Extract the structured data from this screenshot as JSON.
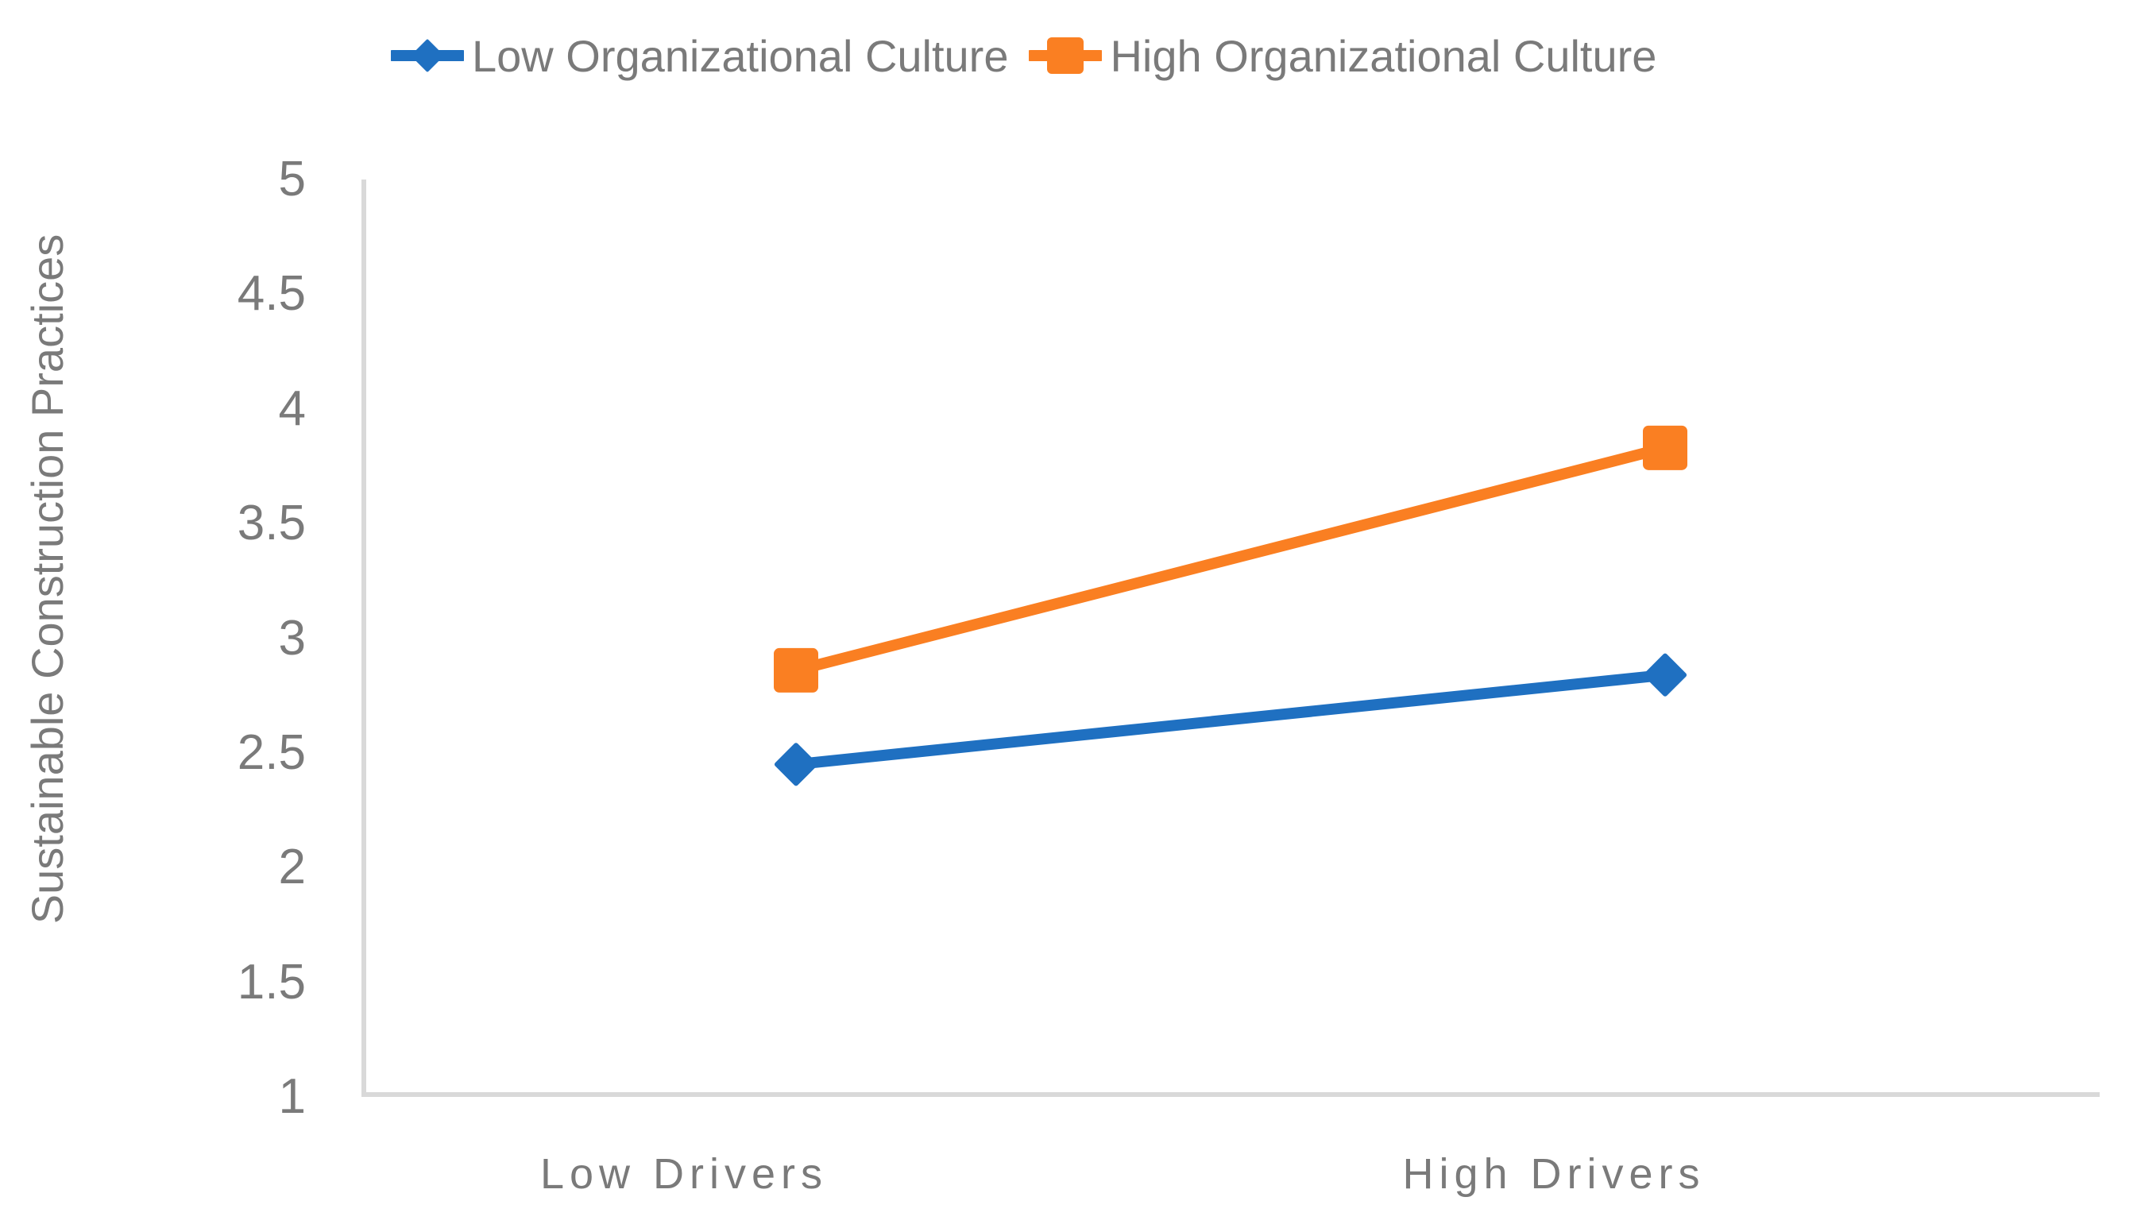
{
  "chart_data": {
    "type": "line",
    "title": "",
    "xlabel": "",
    "ylabel": "Sustainable Construction Practices",
    "categories": [
      "Low Drivers",
      "High Drivers"
    ],
    "series": [
      {
        "name": "Low Organizational Culture",
        "color": "#1f70c1",
        "marker": "diamond",
        "values": [
          2.45,
          2.84
        ]
      },
      {
        "name": "High Organizational Culture",
        "color": "#fa7f22",
        "marker": "square",
        "values": [
          2.86,
          3.83
        ]
      }
    ],
    "ylim": [
      1,
      5
    ],
    "ytick_step": 0.5,
    "yticks": [
      5,
      4.5,
      4,
      3.5,
      3,
      2.5,
      2,
      1.5,
      1
    ],
    "ytick_labels": [
      "5",
      "4.5",
      "4",
      "3.5",
      "3",
      "2.5",
      "2",
      "1.5",
      "1"
    ],
    "grid": false,
    "legend_position": "top",
    "axis_line_color": "#d9d9d9",
    "text_color": "#7a7a7a"
  }
}
